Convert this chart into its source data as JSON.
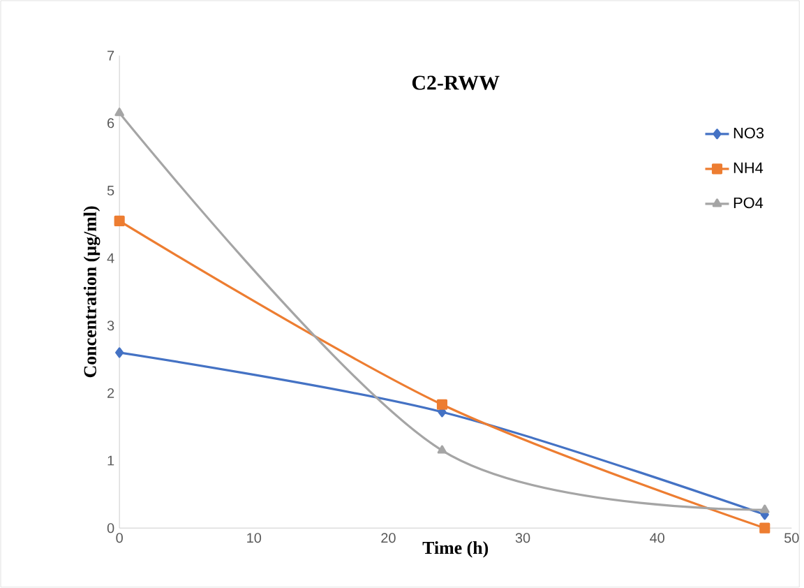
{
  "chart_data": {
    "type": "line",
    "title": "C2-RWW",
    "xlabel": "Time (h)",
    "ylabel": "Concentration (µg/ml)",
    "x": [
      0,
      24,
      48
    ],
    "series": [
      {
        "name": "NO3",
        "color": "#4472c4",
        "marker": "diamond",
        "values": [
          2.6,
          1.72,
          0.2
        ]
      },
      {
        "name": "NH4",
        "color": "#ed7d31",
        "marker": "square",
        "values": [
          4.55,
          1.83,
          0.0
        ]
      },
      {
        "name": "PO4",
        "color": "#a5a5a5",
        "marker": "triangle",
        "values": [
          6.15,
          1.15,
          0.27
        ]
      }
    ],
    "xlim": [
      0,
      50
    ],
    "xticks": [
      0,
      10,
      20,
      30,
      40,
      50
    ],
    "ylim": [
      0,
      7
    ],
    "yticks": [
      0,
      1,
      2,
      3,
      4,
      5,
      6,
      7
    ],
    "grid": false,
    "legend": "top right",
    "line_style": "solid"
  }
}
